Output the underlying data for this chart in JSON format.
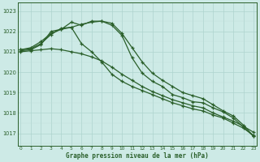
{
  "hours": [
    0,
    1,
    2,
    3,
    4,
    5,
    6,
    7,
    8,
    9,
    10,
    11,
    12,
    13,
    14,
    15,
    16,
    17,
    18,
    19,
    20,
    21,
    22,
    23
  ],
  "series": [
    [
      1021.1,
      1021.2,
      1021.5,
      1021.9,
      1022.1,
      1022.45,
      1022.3,
      1022.5,
      1022.5,
      1022.4,
      1021.9,
      1021.2,
      1020.5,
      1019.95,
      1019.6,
      1019.3,
      1019.0,
      1018.85,
      1018.7,
      1018.4,
      1018.1,
      1017.85,
      1017.4,
      1016.85
    ],
    [
      1021.1,
      1021.15,
      1021.4,
      1021.85,
      1022.15,
      1022.2,
      1022.35,
      1022.45,
      1022.5,
      1022.3,
      1021.8,
      1020.7,
      1019.95,
      1019.55,
      1019.3,
      1018.9,
      1018.75,
      1018.55,
      1018.5,
      1018.25,
      1018.05,
      1017.75,
      1017.3,
      1016.85
    ],
    [
      1021.05,
      1021.1,
      1021.35,
      1022.0,
      1022.1,
      1022.2,
      1021.4,
      1021.0,
      1020.5,
      1019.9,
      1019.55,
      1019.3,
      1019.1,
      1018.9,
      1018.7,
      1018.5,
      1018.35,
      1018.2,
      1018.1,
      1017.9,
      1017.75,
      1017.5,
      1017.25,
      1016.9
    ],
    [
      1021.0,
      1021.05,
      1021.1,
      1021.15,
      1021.1,
      1021.0,
      1020.9,
      1020.75,
      1020.55,
      1020.25,
      1019.9,
      1019.6,
      1019.3,
      1019.05,
      1018.85,
      1018.65,
      1018.5,
      1018.35,
      1018.25,
      1018.0,
      1017.8,
      1017.6,
      1017.35,
      1017.05
    ]
  ],
  "line_color": "#2a5f2a",
  "bg_color": "#cdeae6",
  "grid_major_color": "#aed4cf",
  "grid_minor_color": "#c0ddd9",
  "xlabel": "Graphe pression niveau de la mer (hPa)",
  "ylabel_ticks": [
    1017,
    1018,
    1019,
    1020,
    1021,
    1022,
    1023
  ],
  "ylim": [
    1016.4,
    1023.4
  ],
  "xlim": [
    -0.3,
    23.3
  ],
  "marker": "+"
}
